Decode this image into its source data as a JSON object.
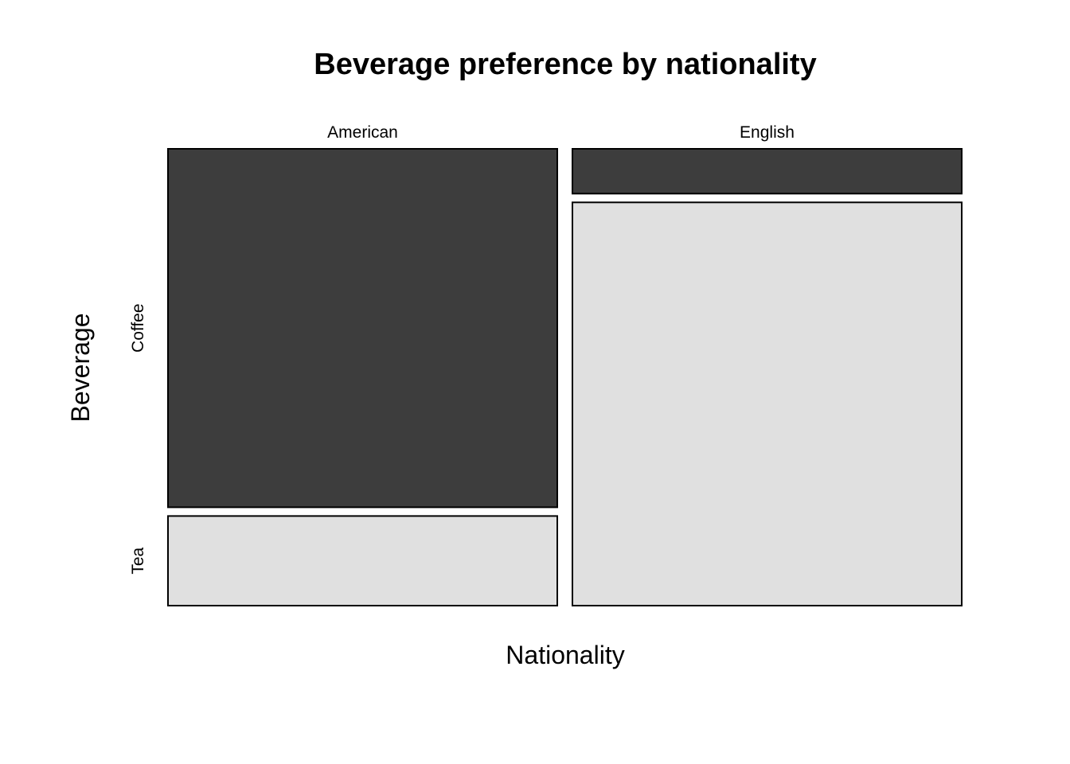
{
  "chart_data": {
    "type": "mosaic",
    "title": "Beverage preference by nationality",
    "xlabel": "Nationality",
    "ylabel": "Beverage",
    "x_categories": [
      "American",
      "English"
    ],
    "y_categories": [
      "Coffee",
      "Tea"
    ],
    "column_proportions": [
      0.5,
      0.5
    ],
    "cells": [
      {
        "x": "American",
        "y": "Coffee",
        "proportion": 0.8
      },
      {
        "x": "American",
        "y": "Tea",
        "proportion": 0.2
      },
      {
        "x": "English",
        "y": "Coffee",
        "proportion": 0.1
      },
      {
        "x": "English",
        "y": "Tea",
        "proportion": 0.9
      }
    ],
    "colors": {
      "Coffee": "#3d3d3d",
      "Tea": "#e0e0e0"
    },
    "legend": "none",
    "grid": false
  }
}
